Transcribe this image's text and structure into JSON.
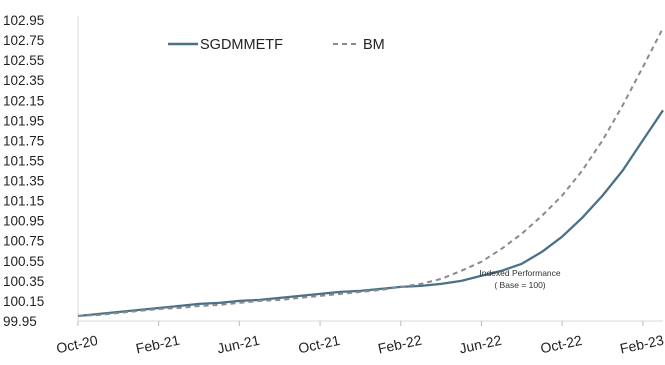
{
  "chart_data": {
    "type": "line",
    "title": "",
    "xlabel": "",
    "ylabel": "",
    "x": [
      "Oct-20",
      "Nov-20",
      "Dec-20",
      "Jan-21",
      "Feb-21",
      "Mar-21",
      "Apr-21",
      "May-21",
      "Jun-21",
      "Jul-21",
      "Aug-21",
      "Sep-21",
      "Oct-21",
      "Nov-21",
      "Dec-21",
      "Jan-22",
      "Feb-22",
      "Mar-22",
      "Apr-22",
      "May-22",
      "Jun-22",
      "Jul-22",
      "Aug-22",
      "Sep-22",
      "Oct-22",
      "Nov-22",
      "Dec-22",
      "Jan-23",
      "Feb-23",
      "Mar-23"
    ],
    "x_tick_labels": [
      "Oct-20",
      "Feb-21",
      "Jun-21",
      "Oct-21",
      "Feb-22",
      "Jun-22",
      "Oct-22",
      "Feb-23"
    ],
    "y_tick_labels": [
      "102.95",
      "102.75",
      "102.55",
      "102.35",
      "102.15",
      "101.95",
      "101.75",
      "101.55",
      "101.35",
      "101.15",
      "100.95",
      "100.75",
      "100.55",
      "100.35",
      "100.15",
      "99.95"
    ],
    "ylim": [
      99.95,
      102.95
    ],
    "grid": false,
    "legend_position": "top-left",
    "series": [
      {
        "name": "SGDMMETF",
        "color": "#4a7189",
        "dash": "solid",
        "values": [
          100.0,
          100.02,
          100.04,
          100.06,
          100.08,
          100.1,
          100.12,
          100.13,
          100.15,
          100.16,
          100.18,
          100.2,
          100.22,
          100.24,
          100.25,
          100.27,
          100.29,
          100.3,
          100.32,
          100.35,
          100.4,
          100.45,
          100.52,
          100.64,
          100.79,
          100.98,
          101.2,
          101.45,
          101.75,
          102.05
        ]
      },
      {
        "name": "BM",
        "color": "#8a8a8a",
        "dash": "dashed",
        "values": [
          100.0,
          100.01,
          100.03,
          100.05,
          100.07,
          100.08,
          100.1,
          100.11,
          100.13,
          100.15,
          100.16,
          100.18,
          100.2,
          100.22,
          100.24,
          100.26,
          100.29,
          100.32,
          100.37,
          100.45,
          100.54,
          100.67,
          100.82,
          101.0,
          101.2,
          101.45,
          101.75,
          102.1,
          102.48,
          102.87
        ]
      }
    ],
    "annotation": {
      "line1": "Indexed Performance",
      "line2": "( Base = 100)"
    }
  }
}
